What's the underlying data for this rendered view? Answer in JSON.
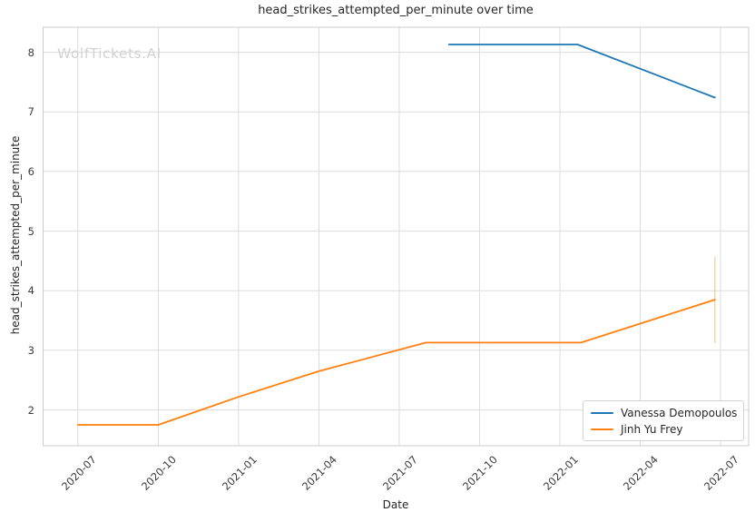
{
  "figure": {
    "watermark": "WolfTickets.AI"
  },
  "chart_data": {
    "type": "line",
    "title": "head_strikes_attempted_per_minute over time",
    "xlabel": "Date",
    "ylabel": "head_strikes_attempted_per_minute",
    "x_tick_labels": [
      "2020-07",
      "2020-10",
      "2021-01",
      "2021-04",
      "2021-07",
      "2021-10",
      "2022-01",
      "2022-04",
      "2022-07"
    ],
    "y_ticks": [
      2,
      3,
      4,
      5,
      6,
      7,
      8
    ],
    "ylim": [
      1.4,
      8.42
    ],
    "xlim_months_from_2020_07": [
      -1.3,
      25.05
    ],
    "grid": true,
    "legend_position": "lower right",
    "series": [
      {
        "name": "Vanessa Demopoulos",
        "color": "#1f77b4",
        "points": [
          [
            "2021-08-27",
            8.13
          ],
          [
            "2022-01-21",
            8.13
          ],
          [
            "2022-06-25",
            7.24
          ]
        ]
      },
      {
        "name": "Jinh Yu Frey",
        "color": "#ff7f0e",
        "points": [
          [
            "2020-07-01",
            1.75
          ],
          [
            "2020-10-01",
            1.75
          ],
          [
            "2021-01-01",
            2.22
          ],
          [
            "2021-04-01",
            2.65
          ],
          [
            "2021-08-01",
            3.13
          ],
          [
            "2022-01-25",
            3.13
          ],
          [
            "2022-06-25",
            3.85
          ]
        ],
        "error_bar": {
          "date": "2022-06-25",
          "low": 3.12,
          "high": 4.57
        }
      }
    ]
  },
  "colors": {
    "grid": "#dcdcdc",
    "spine": "#cbcbcb",
    "error_bar": "rgba(255,127,14,0.38)"
  }
}
